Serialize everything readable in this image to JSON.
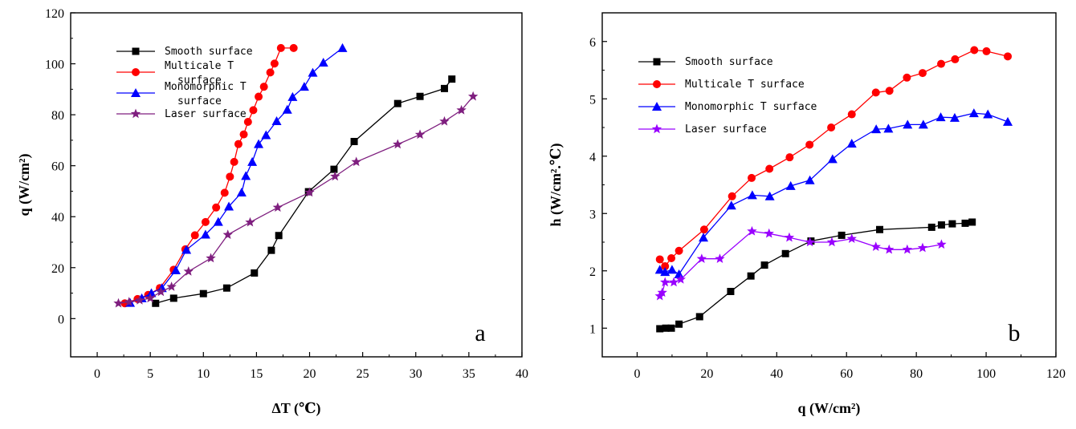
{
  "chart_data": [
    {
      "type": "line",
      "panel_label": "a",
      "xlabel": "ΔT (℃)",
      "ylabel": "q (W/cm²)",
      "xlim": [
        -2.5,
        40
      ],
      "ylim": [
        -15,
        120
      ],
      "xticks": [
        0,
        5,
        10,
        15,
        20,
        25,
        30,
        35,
        40
      ],
      "xtick_labels": [
        "0",
        "5",
        "10",
        "15",
        "20",
        "25",
        "30",
        "35",
        "40"
      ],
      "yticks": [
        0,
        20,
        40,
        60,
        80,
        100,
        120
      ],
      "ytick_labels": [
        "0",
        "20",
        "40",
        "60",
        "80",
        "100",
        "120"
      ],
      "legend_position": "top-left",
      "series": [
        {
          "name": "Smooth surface",
          "color": "#000000",
          "marker": "square",
          "x": [
            5.5,
            7.2,
            10.0,
            12.2,
            14.8,
            16.4,
            17.1,
            19.9,
            22.3,
            24.2,
            28.3,
            30.4,
            32.7,
            33.4
          ],
          "y": [
            6.0,
            8.0,
            9.8,
            12.0,
            17.9,
            26.8,
            32.6,
            49.8,
            58.6,
            69.5,
            84.4,
            87.2,
            90.3,
            94.0
          ]
        },
        {
          "name": "Multicale T surface",
          "color": "#ff0000",
          "marker": "circle",
          "x": [
            2.6,
            3.8,
            4.8,
            5.9,
            7.2,
            8.3,
            9.2,
            10.2,
            11.2,
            12.0,
            12.5,
            12.9,
            13.3,
            13.8,
            14.2,
            14.7,
            15.2,
            15.7,
            16.3,
            16.7,
            17.3,
            18.5
          ],
          "y": [
            6.0,
            7.7,
            9.3,
            12.0,
            19.2,
            27.2,
            32.7,
            37.9,
            43.6,
            49.4,
            55.7,
            61.5,
            68.5,
            72.3,
            77.2,
            81.8,
            87.1,
            91.0,
            96.6,
            100.1,
            106.2,
            106.2
          ]
        },
        {
          "name": "Monomorphic T surface",
          "color": "#0000ff",
          "marker": "triangle",
          "x": [
            3.1,
            4.2,
            5.1,
            6.1,
            7.4,
            8.4,
            10.2,
            11.4,
            12.4,
            13.6,
            14.0,
            14.6,
            15.2,
            15.9,
            16.9,
            17.9,
            18.4,
            19.5,
            20.3,
            21.3,
            23.1
          ],
          "y": [
            6.2,
            8.0,
            10.0,
            12.0,
            19.0,
            27.0,
            33.0,
            38.0,
            44.0,
            49.5,
            56.0,
            61.5,
            68.5,
            72.0,
            77.5,
            82.0,
            87.0,
            91.0,
            96.5,
            100.5,
            106.2
          ],
          "x_note": ""
        },
        {
          "name": "Laser surface",
          "color": "#7f1f7f",
          "marker": "star",
          "x": [
            2.0,
            3.0,
            4.0,
            5.0,
            6.0,
            7.0,
            8.6,
            10.7,
            12.3,
            14.4,
            17.0,
            20.0,
            22.4,
            24.4,
            28.3,
            30.4,
            32.7,
            34.3,
            35.4
          ],
          "y": [
            6.0,
            6.5,
            7.2,
            8.0,
            10.5,
            12.5,
            18.5,
            23.7,
            32.9,
            37.8,
            43.6,
            49.5,
            55.8,
            61.5,
            68.4,
            72.2,
            77.4,
            81.8,
            87.2
          ]
        }
      ]
    },
    {
      "type": "line",
      "panel_label": "b",
      "xlabel": "q (W/cm²)",
      "ylabel": "h (W/cm².℃)",
      "xlim": [
        -10,
        120
      ],
      "ylim": [
        0.5,
        6.5
      ],
      "xticks": [
        0,
        20,
        40,
        60,
        80,
        100,
        120
      ],
      "xtick_labels": [
        "0",
        "20",
        "40",
        "60",
        "80",
        "100",
        "120"
      ],
      "yticks": [
        1,
        2,
        3,
        4,
        5,
        6
      ],
      "ytick_labels": [
        "1",
        "2",
        "3",
        "4",
        "5",
        "6"
      ],
      "legend_position": "top-left",
      "series": [
        {
          "name": "Smooth surface",
          "color": "#000000",
          "marker": "square",
          "x": [
            6.5,
            8.2,
            9.8,
            12.0,
            17.9,
            26.8,
            32.6,
            36.5,
            42.5,
            49.8,
            58.6,
            69.5,
            84.4,
            87.2,
            90.3,
            94.0,
            96.0
          ],
          "y": [
            0.99,
            1.0,
            1.0,
            1.07,
            1.2,
            1.64,
            1.91,
            2.1,
            2.3,
            2.52,
            2.62,
            2.72,
            2.76,
            2.8,
            2.82,
            2.83,
            2.85
          ]
        },
        {
          "name": "Multicale T surface",
          "color": "#ff0000",
          "marker": "circle",
          "x": [
            6.5,
            8.0,
            9.8,
            12.0,
            19.2,
            27.2,
            32.8,
            37.9,
            43.7,
            49.4,
            55.6,
            61.5,
            68.4,
            72.3,
            77.3,
            81.8,
            87.1,
            91.1,
            96.6,
            100.1,
            106.2
          ],
          "y": [
            2.2,
            2.08,
            2.22,
            2.35,
            2.72,
            3.3,
            3.62,
            3.78,
            3.98,
            4.2,
            4.5,
            4.73,
            5.11,
            5.14,
            5.37,
            5.45,
            5.61,
            5.69,
            5.85,
            5.83,
            5.74
          ]
        },
        {
          "name": "Monomorphic T surface",
          "color": "#0000ff",
          "marker": "triangle",
          "x": [
            6.5,
            8.0,
            10.0,
            12.0,
            19.0,
            27.0,
            33.0,
            38.0,
            44.0,
            49.5,
            56.0,
            61.5,
            68.5,
            72.0,
            77.5,
            82.0,
            87.0,
            91.0,
            96.5,
            100.5,
            106.2
          ],
          "y": [
            2.02,
            1.98,
            2.02,
            1.94,
            2.58,
            3.14,
            3.32,
            3.3,
            3.48,
            3.58,
            3.95,
            4.22,
            4.47,
            4.48,
            4.55,
            4.55,
            4.68,
            4.67,
            4.75,
            4.73,
            4.6
          ]
        },
        {
          "name": "Laser surface",
          "color": "#9900ff",
          "marker": "star",
          "x": [
            6.5,
            7.2,
            8.0,
            10.5,
            12.5,
            18.5,
            23.7,
            32.9,
            37.8,
            43.6,
            49.5,
            55.8,
            61.5,
            68.4,
            72.2,
            77.4,
            81.8,
            87.2
          ],
          "y": [
            1.56,
            1.62,
            1.8,
            1.8,
            1.85,
            2.21,
            2.21,
            2.69,
            2.65,
            2.58,
            2.5,
            2.5,
            2.56,
            2.42,
            2.37,
            2.37,
            2.4,
            2.46
          ]
        }
      ]
    }
  ]
}
